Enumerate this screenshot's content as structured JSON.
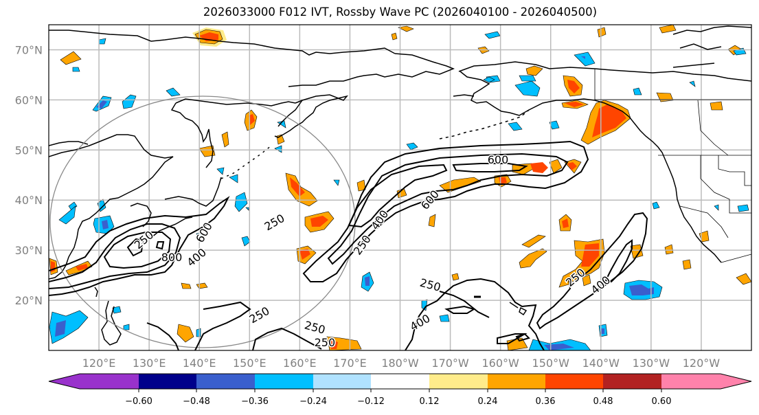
{
  "title": "2026033000 F012 IVT, Rossby Wave PC (2026040100 - 2026040500)",
  "map": {
    "lat_labels": [
      "70°N",
      "60°N",
      "50°N",
      "40°N",
      "30°N",
      "20°N"
    ],
    "lat_values": [
      70,
      60,
      50,
      40,
      30,
      20
    ],
    "lon_labels": [
      "120°E",
      "130°E",
      "140°E",
      "150°E",
      "160°E",
      "170°E",
      "180°W",
      "170°W",
      "160°W",
      "150°W",
      "140°W",
      "130°W",
      "120°W"
    ],
    "lon_values": [
      120,
      130,
      140,
      150,
      160,
      170,
      180,
      190,
      200,
      210,
      220,
      230,
      240
    ],
    "extent": {
      "lon_min": 110,
      "lon_max": 250,
      "lat_min": 10,
      "lat_max": 75
    },
    "colors": {
      "gridline": "#bbbbbb",
      "coast": "#000000",
      "circle": "#888888",
      "contour": "#000000"
    },
    "ivt_contour_labels": [
      "250",
      "400",
      "600",
      "800"
    ],
    "contour_label_instances": [
      {
        "text": "250",
        "lon": 155,
        "lat": 35.5
      },
      {
        "text": "400",
        "lon": 139.5,
        "lat": 28.5
      },
      {
        "text": "800",
        "lon": 134.5,
        "lat": 28.5
      },
      {
        "text": "600",
        "lon": 141,
        "lat": 33.5
      },
      {
        "text": "250",
        "lon": 129,
        "lat": 32
      },
      {
        "text": "600",
        "lon": 199.5,
        "lat": 48
      },
      {
        "text": "600",
        "lon": 186,
        "lat": 40
      },
      {
        "text": "400",
        "lon": 176,
        "lat": 36
      },
      {
        "text": "250",
        "lon": 172.5,
        "lat": 31
      },
      {
        "text": "250",
        "lon": 186,
        "lat": 23
      },
      {
        "text": "400",
        "lon": 184,
        "lat": 15.5
      },
      {
        "text": "250",
        "lon": 152,
        "lat": 17
      },
      {
        "text": "250",
        "lon": 163,
        "lat": 14.5
      },
      {
        "text": "250",
        "lon": 165,
        "lat": 11.5
      },
      {
        "text": "250",
        "lon": 215,
        "lat": 24.5
      },
      {
        "text": "400",
        "lon": 220,
        "lat": 23
      }
    ]
  },
  "colorbar": {
    "ticks": [
      "−0.60",
      "−0.48",
      "−0.36",
      "−0.24",
      "−0.12",
      "0.12",
      "0.24",
      "0.36",
      "0.48",
      "0.60"
    ],
    "colors": [
      "#9932cc",
      "#00008b",
      "#3a5fcd",
      "#00bfff",
      "#b0e2ff",
      "#ffffff",
      "#ffec8b",
      "#ffa500",
      "#ff4500",
      "#b22222",
      "#ff82ab"
    ]
  }
}
